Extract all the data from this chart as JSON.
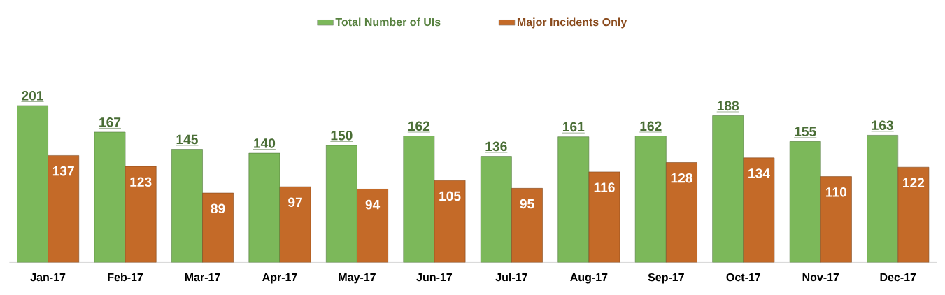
{
  "chart_data": {
    "type": "bar",
    "categories": [
      "Jan-17",
      "Feb-17",
      "Mar-17",
      "Apr-17",
      "May-17",
      "Jun-17",
      "Jul-17",
      "Aug-17",
      "Sep-17",
      "Oct-17",
      "Nov-17",
      "Dec-17"
    ],
    "series": [
      {
        "name": "Total Number of UIs",
        "color": "#7cb85a",
        "values": [
          201,
          167,
          145,
          140,
          150,
          162,
          136,
          161,
          162,
          188,
          155,
          163
        ]
      },
      {
        "name": "Major Incidents Only",
        "color": "#c46a28",
        "values": [
          137,
          123,
          89,
          97,
          94,
          105,
          95,
          116,
          128,
          134,
          110,
          122
        ]
      }
    ],
    "data_labels": true,
    "legend": "top",
    "grid": false,
    "tick_labels": "x"
  }
}
